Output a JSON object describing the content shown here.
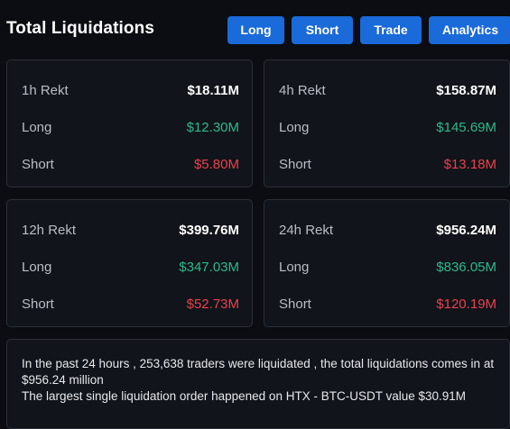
{
  "header": {
    "title": "Total Liquidations",
    "buttons": {
      "long": "Long",
      "short": "Short",
      "trade": "Trade",
      "analytics": "Analytics"
    }
  },
  "cards": {
    "h1": {
      "period_label": "1h Rekt",
      "total": "$18.11M",
      "long_label": "Long",
      "long_value": "$12.30M",
      "short_label": "Short",
      "short_value": "$5.80M"
    },
    "h4": {
      "period_label": "4h Rekt",
      "total": "$158.87M",
      "long_label": "Long",
      "long_value": "$145.69M",
      "short_label": "Short",
      "short_value": "$13.18M"
    },
    "h12": {
      "period_label": "12h Rekt",
      "total": "$399.76M",
      "long_label": "Long",
      "long_value": "$347.03M",
      "short_label": "Short",
      "short_value": "$52.73M"
    },
    "h24": {
      "period_label": "24h Rekt",
      "total": "$956.24M",
      "long_label": "Long",
      "long_value": "$836.05M",
      "short_label": "Short",
      "short_value": "$120.19M"
    }
  },
  "summary": {
    "line1": "In the past 24 hours , 253,638 traders were liquidated , the total liquidations comes in at $956.24 million",
    "line2": "The largest single liquidation order happened on HTX - BTC-USDT value $30.91M"
  },
  "colors": {
    "background": "#0b0d12",
    "card": "#11141a",
    "button": "#1a6ad9",
    "long": "#2fb88a",
    "short": "#e8424d"
  }
}
